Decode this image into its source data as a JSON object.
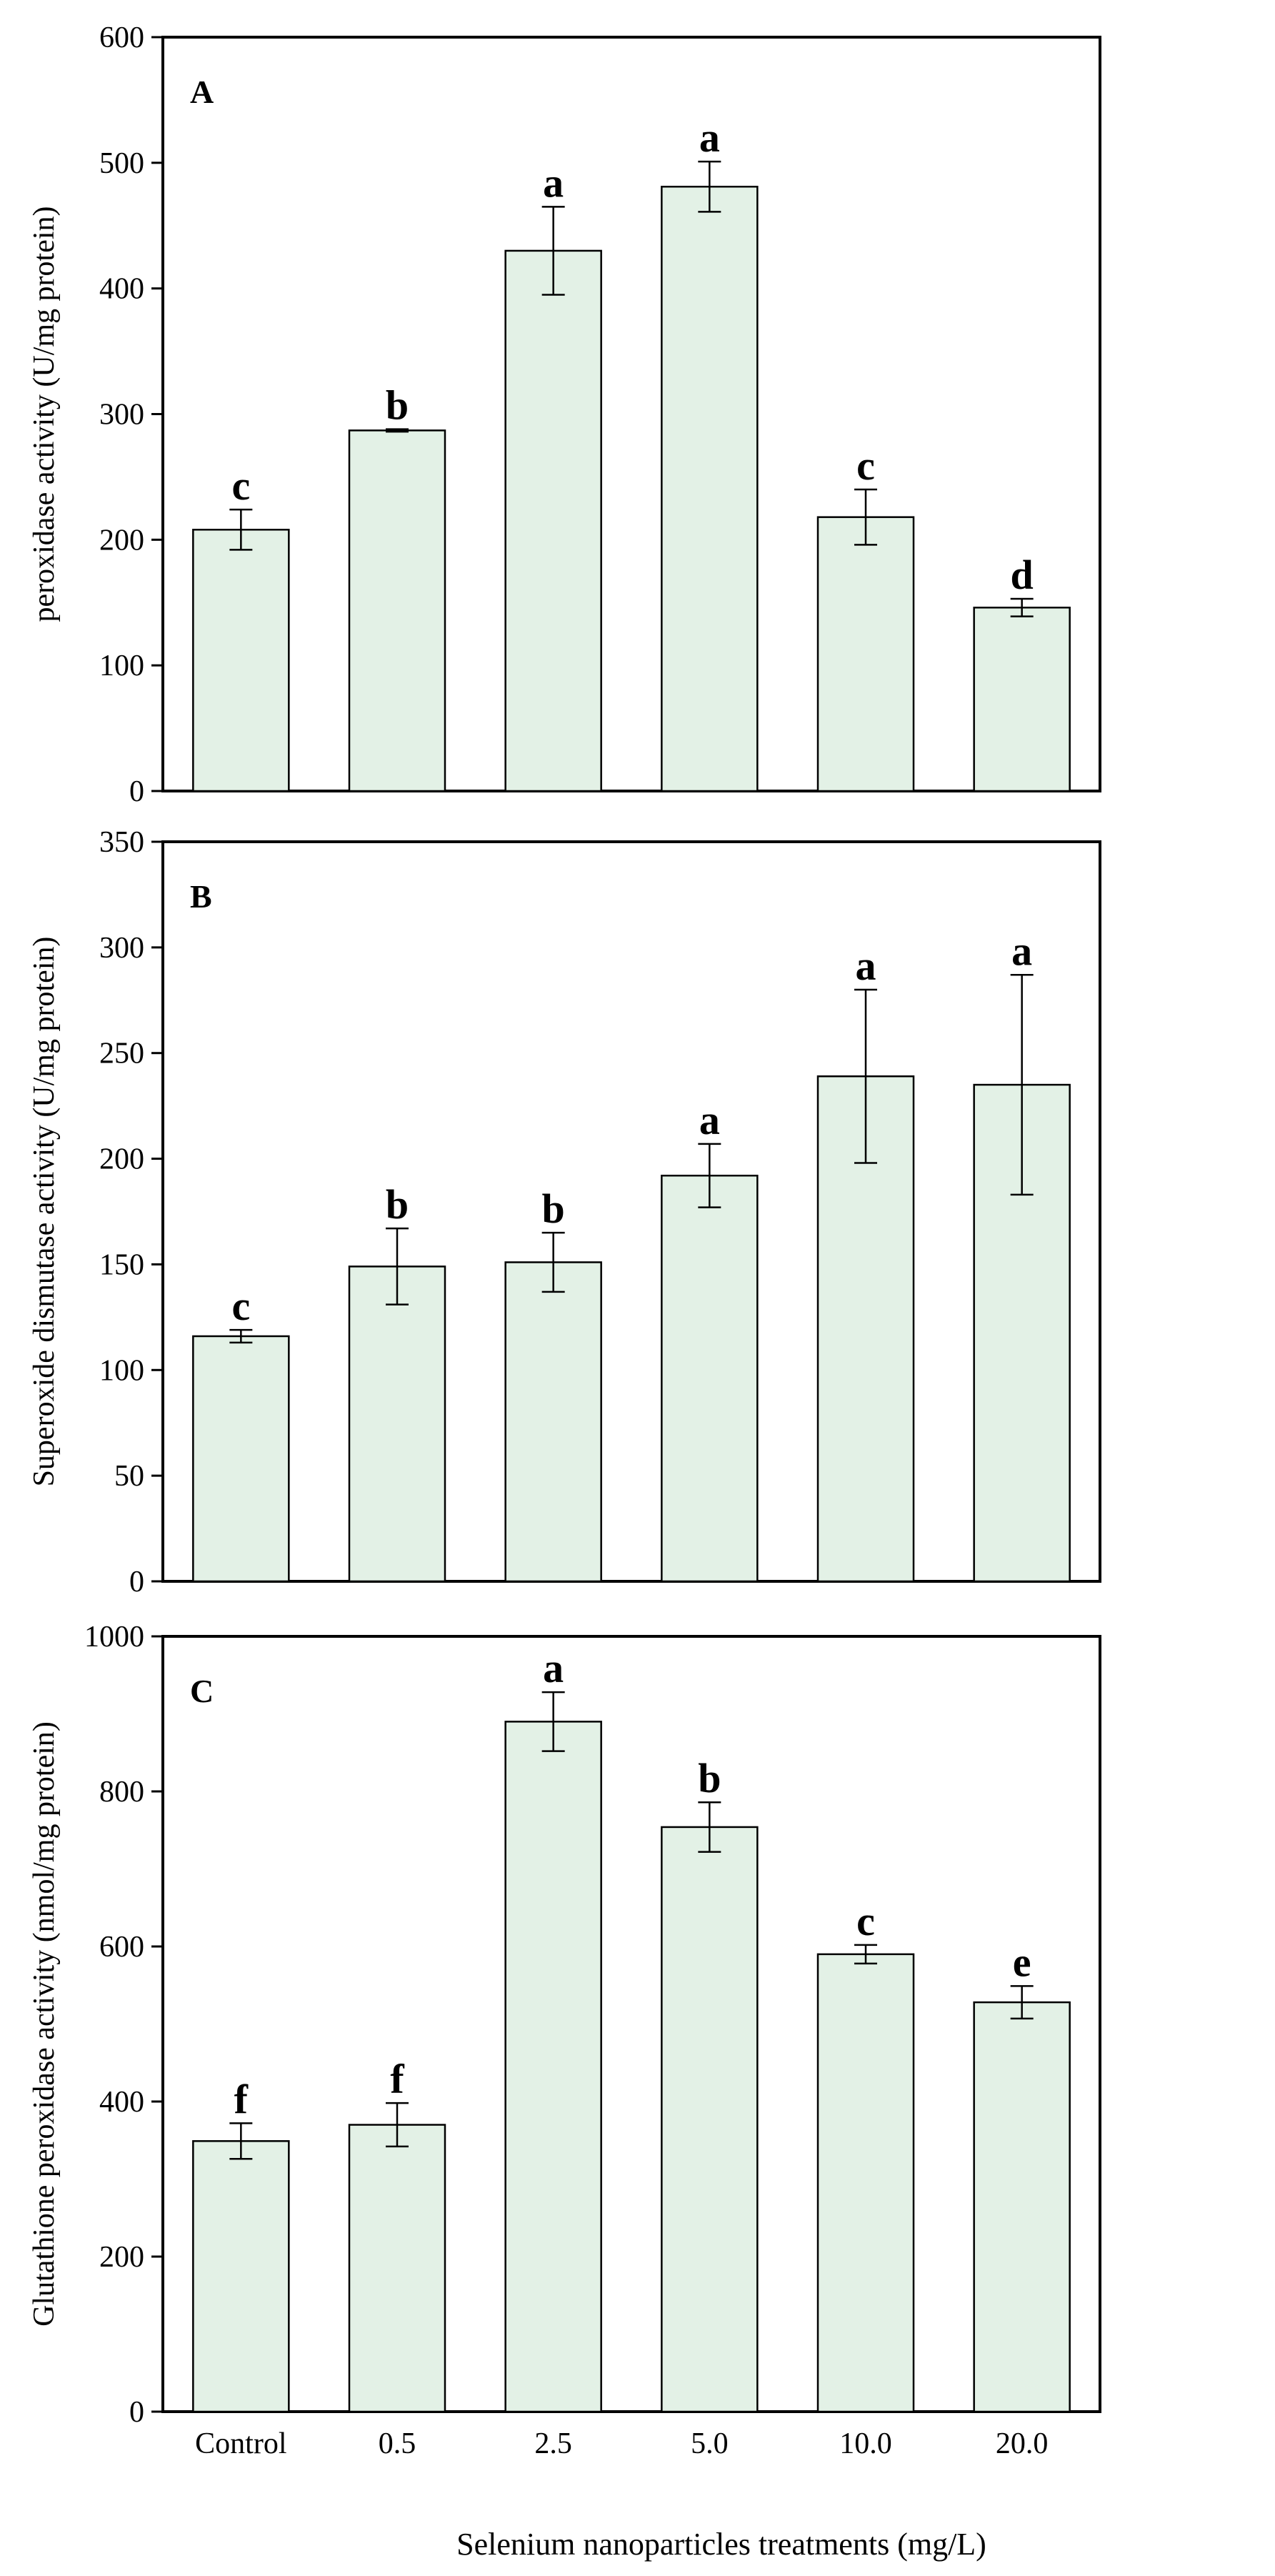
{
  "chart_data": [
    {
      "type": "bar",
      "panel": "A",
      "ylabel": "peroxidase activity (U/mg protein)",
      "ylim": [
        0,
        600
      ],
      "yticks": [
        0,
        100,
        200,
        300,
        400,
        500,
        600
      ],
      "categories": [
        "Control",
        "0.5",
        "2.5",
        "5.0",
        "10.0",
        "20.0"
      ],
      "values": [
        208,
        287,
        430,
        481,
        218,
        146
      ],
      "errors": [
        16,
        1,
        35,
        20,
        22,
        7
      ],
      "letters": [
        "c",
        "b",
        "a",
        "a",
        "c",
        "d"
      ]
    },
    {
      "type": "bar",
      "panel": "B",
      "ylabel": "Superoxide dismutase activity (U/mg protein)",
      "ylim": [
        0,
        350
      ],
      "yticks": [
        0,
        50,
        100,
        150,
        200,
        250,
        300,
        350
      ],
      "categories": [
        "Control",
        "0.5",
        "2.5",
        "5.0",
        "10.0",
        "20.0"
      ],
      "values": [
        116,
        149,
        151,
        192,
        239,
        235
      ],
      "errors": [
        3,
        18,
        14,
        15,
        41,
        52
      ],
      "letters": [
        "c",
        "b",
        "b",
        "a",
        "a",
        "a"
      ]
    },
    {
      "type": "bar",
      "panel": "C",
      "ylabel": "Glutathione peroxidase activity (nmol/mg protein)",
      "ylim": [
        0,
        1000
      ],
      "yticks": [
        0,
        200,
        400,
        600,
        800,
        1000
      ],
      "categories": [
        "Control",
        "0.5",
        "2.5",
        "5.0",
        "10.0",
        "20.0"
      ],
      "values": [
        349,
        370,
        890,
        754,
        590,
        528
      ],
      "errors": [
        23,
        28,
        38,
        32,
        12,
        21
      ],
      "letters": [
        "f",
        "f",
        "a",
        "b",
        "c",
        "e"
      ]
    }
  ],
  "xlabel": "Selenium nanoparticles treatments (mg/L)",
  "colors": {
    "bar_fill": "#e3f1e6",
    "stroke": "#000000"
  }
}
